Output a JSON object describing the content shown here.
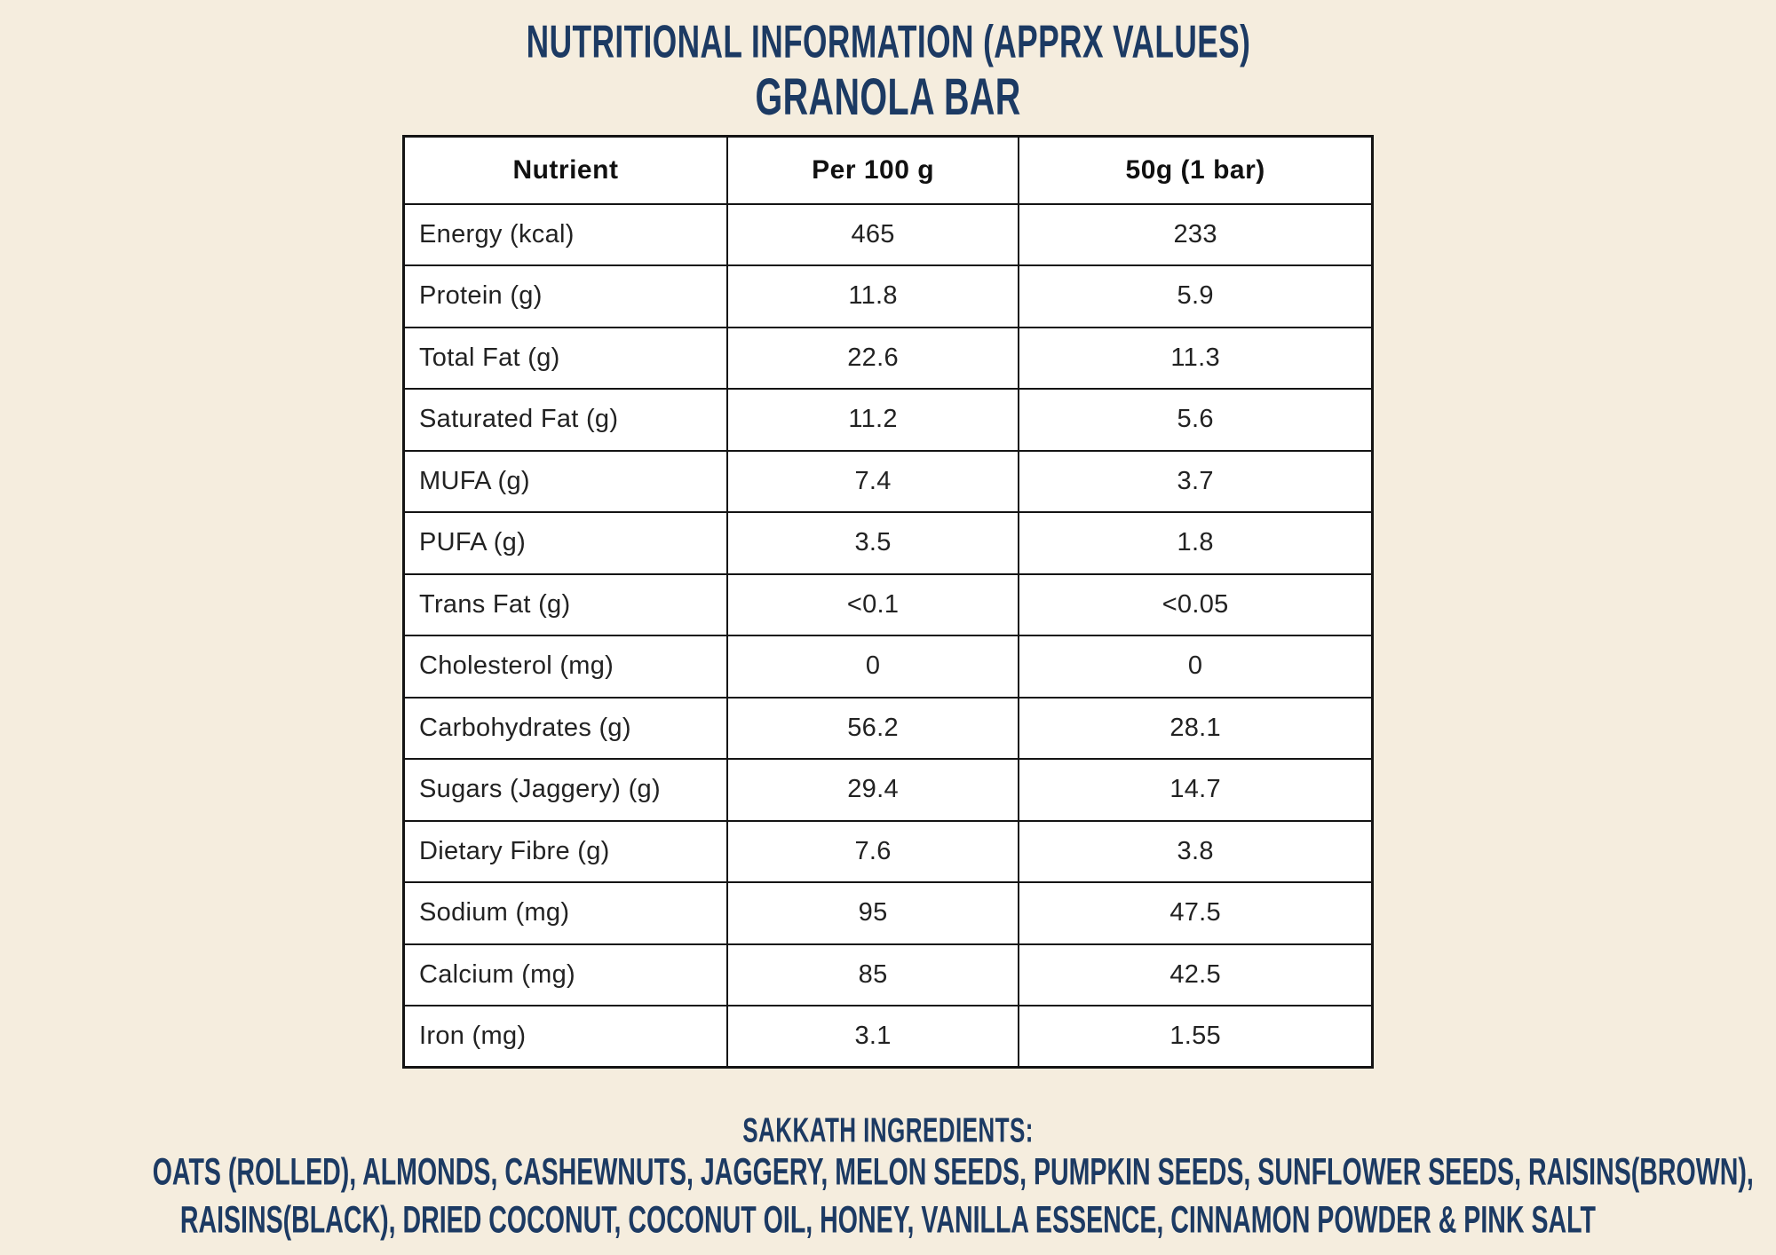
{
  "page": {
    "title": "NUTRITIONAL INFORMATION (APPRX VALUES)",
    "subtitle": "GRANOLA BAR"
  },
  "table": {
    "columns": [
      "Nutrient",
      "Per 100 g",
      "50g (1 bar)"
    ],
    "rows": [
      [
        "Energy (kcal)",
        "465",
        "233"
      ],
      [
        "Protein (g)",
        "11.8",
        "5.9"
      ],
      [
        "Total Fat (g)",
        "22.6",
        "11.3"
      ],
      [
        "Saturated Fat (g)",
        "11.2",
        "5.6"
      ],
      [
        "MUFA (g)",
        "7.4",
        "3.7"
      ],
      [
        "PUFA (g)",
        "3.5",
        "1.8"
      ],
      [
        "Trans Fat (g)",
        "<0.1",
        "<0.05"
      ],
      [
        "Cholesterol (mg)",
        "0",
        "0"
      ],
      [
        "Carbohydrates (g)",
        "56.2",
        "28.1"
      ],
      [
        "Sugars (Jaggery) (g)",
        "29.4",
        "14.7"
      ],
      [
        "Dietary Fibre (g)",
        "7.6",
        "3.8"
      ],
      [
        "Sodium (mg)",
        "95",
        "47.5"
      ],
      [
        "Calcium (mg)",
        "85",
        "42.5"
      ],
      [
        "Iron (mg)",
        "3.1",
        "1.55"
      ]
    ]
  },
  "ingredients": {
    "heading": "SAKKATH INGREDIENTS:",
    "line1": "OATS (ROLLED), ALMONDS, CASHEWNUTS, JAGGERY, MELON SEEDS, PUMPKIN SEEDS, SUNFLOWER SEEDS, RAISINS(BROWN),",
    "line2": "RAISINS(BLACK), DRIED COCONUT, COCONUT OIL, HONEY, VANILLA ESSENCE, CINNAMON POWDER & PINK SALT"
  },
  "colors": {
    "background": "#f5edde",
    "accent_navy": "#1c3a63",
    "table_background": "#ffffff",
    "table_border": "#141414",
    "table_text": "#222222"
  }
}
